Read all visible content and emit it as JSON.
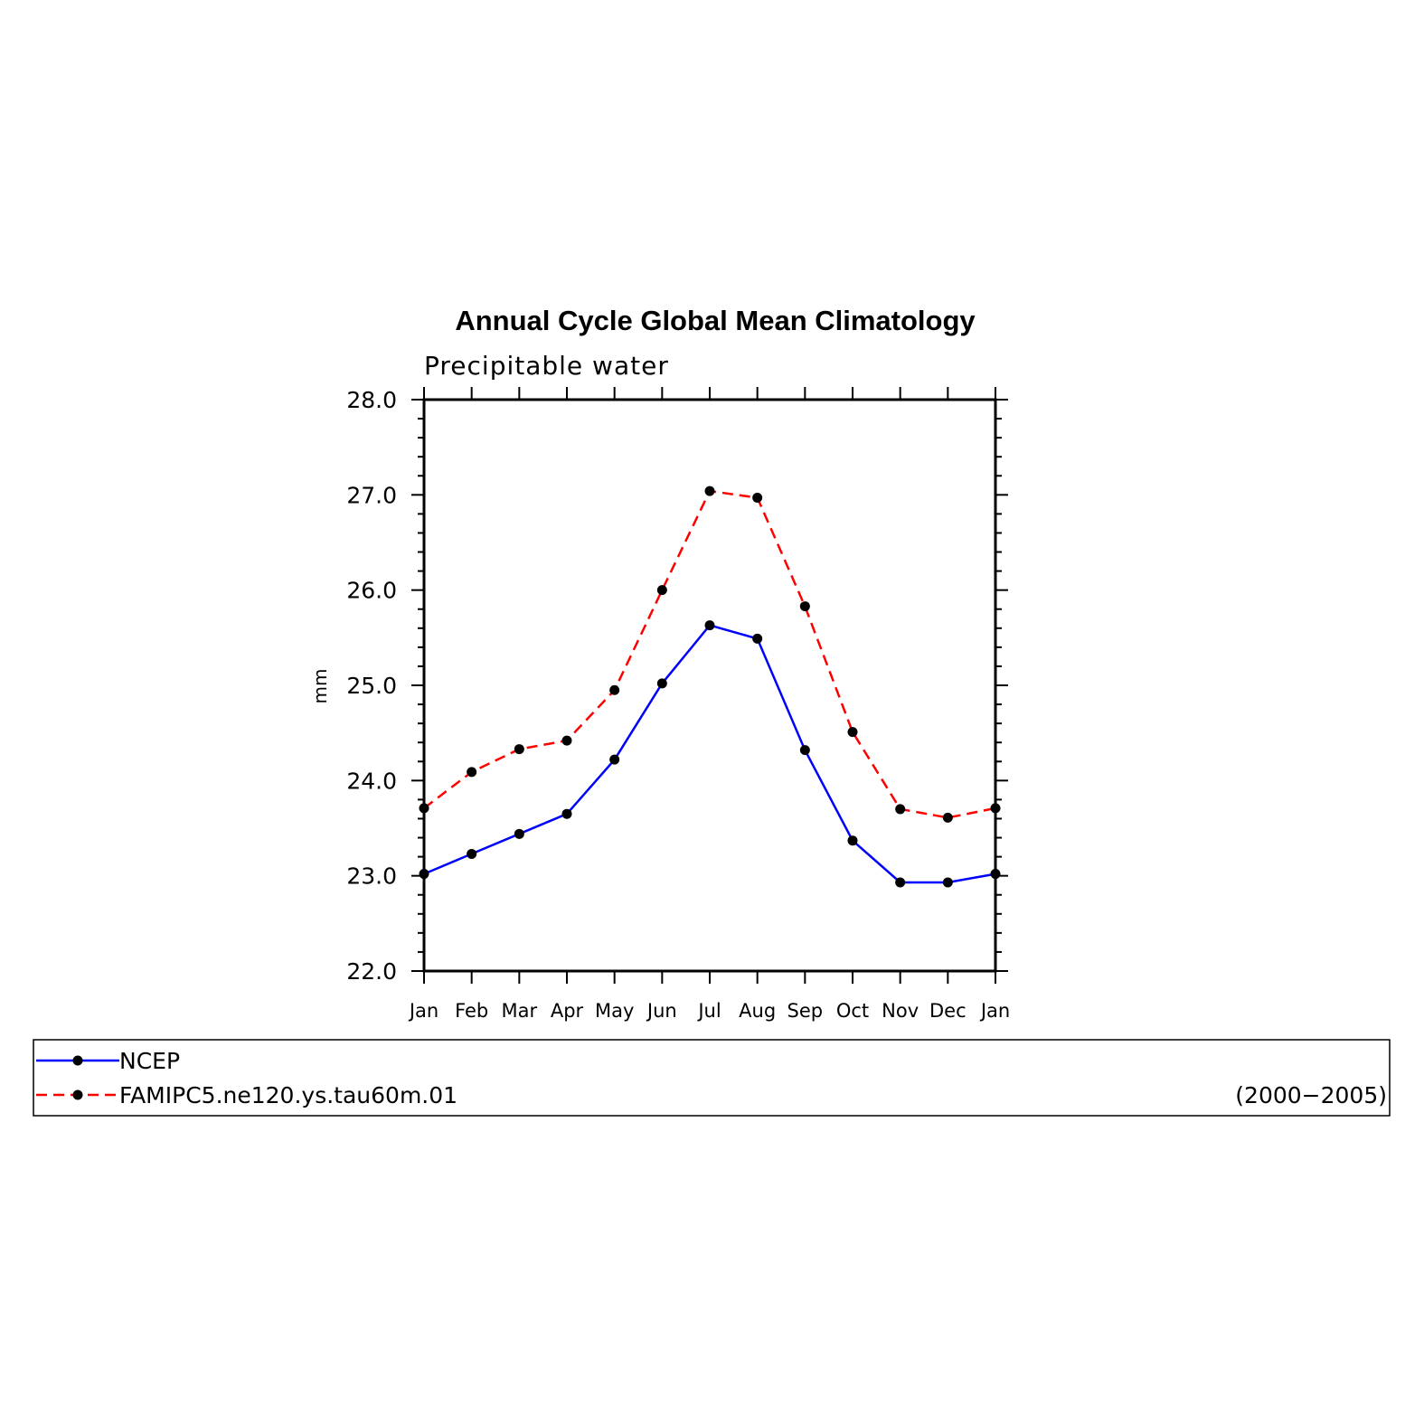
{
  "chart_data": {
    "type": "line",
    "title": "Annual Cycle Global Mean Climatology",
    "subtitle": "Precipitable water",
    "xlabel": "",
    "ylabel": "mm",
    "categories": [
      "Jan",
      "Feb",
      "Mar",
      "Apr",
      "May",
      "Jun",
      "Jul",
      "Aug",
      "Sep",
      "Oct",
      "Nov",
      "Dec",
      "Jan"
    ],
    "ylim": [
      22.0,
      28.0
    ],
    "yticks": [
      "22.0",
      "23.0",
      "24.0",
      "25.0",
      "26.0",
      "27.0",
      "28.0"
    ],
    "grid": false,
    "legend_position": "bottom",
    "series": [
      {
        "name": "NCEP",
        "color": "#0000ff",
        "style": "solid",
        "marker": "circle",
        "values": [
          23.02,
          23.23,
          23.44,
          23.65,
          24.22,
          25.02,
          25.63,
          25.49,
          24.32,
          23.37,
          22.93,
          22.93,
          23.02
        ]
      },
      {
        "name": "FAMIPC5.ne120.ys.tau60m.01",
        "color": "#ff0000",
        "style": "dashed",
        "marker": "circle",
        "values": [
          23.71,
          24.09,
          24.33,
          24.42,
          24.95,
          26.0,
          27.04,
          26.97,
          25.83,
          24.51,
          23.7,
          23.61,
          23.71
        ]
      }
    ],
    "legend_note": "(2000−2005)"
  }
}
